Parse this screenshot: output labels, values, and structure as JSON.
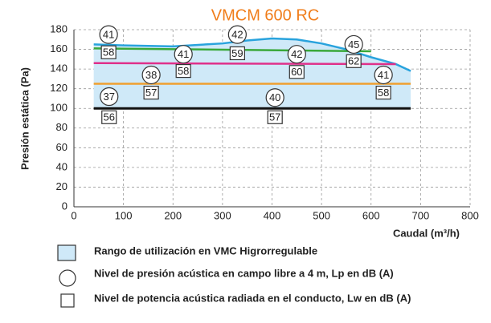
{
  "chart_data": {
    "type": "line",
    "title": "VMCM 600 RC",
    "title_color": "#f07d1a",
    "xlabel": "Caudal (m³/h)",
    "ylabel": "Presión estática (Pa)",
    "xlim": [
      0,
      800
    ],
    "xticks": [
      0,
      100,
      200,
      300,
      400,
      500,
      600,
      700,
      800
    ],
    "ylim": [
      0,
      180
    ],
    "yticks": [
      0,
      20,
      40,
      60,
      80,
      100,
      120,
      140,
      160,
      180
    ],
    "grid": true,
    "area_color": "#cfe9f8",
    "series": [
      {
        "color": "#29a3dd",
        "x": [
          40,
          100,
          200,
          300,
          350,
          400,
          450,
          500,
          550,
          600,
          650,
          680
        ],
        "values": [
          165,
          164,
          163,
          166,
          169,
          171,
          170,
          166,
          160,
          152,
          145,
          138
        ]
      },
      {
        "color": "#3aa83a",
        "x": [
          40,
          600
        ],
        "values": [
          161,
          158
        ]
      },
      {
        "color": "#e0308a",
        "x": [
          40,
          650
        ],
        "values": [
          146,
          145
        ]
      },
      {
        "color": "#f0a030",
        "x": [
          40,
          680
        ],
        "values": [
          125,
          125
        ]
      },
      {
        "color": "#111111",
        "x": [
          40,
          680
        ],
        "values": [
          100,
          100
        ]
      }
    ],
    "lp_labels": [
      {
        "x": 70,
        "y": 175,
        "value": 41
      },
      {
        "x": 330,
        "y": 175,
        "value": 42
      },
      {
        "x": 221,
        "y": 155,
        "value": 41
      },
      {
        "x": 450,
        "y": 155,
        "value": 42
      },
      {
        "x": 565,
        "y": 165,
        "value": 45
      },
      {
        "x": 156,
        "y": 134,
        "value": 38
      },
      {
        "x": 625,
        "y": 134,
        "value": 41
      },
      {
        "x": 71,
        "y": 112,
        "value": 37
      },
      {
        "x": 406,
        "y": 111,
        "value": 40
      }
    ],
    "lw_labels": [
      {
        "x": 70,
        "y": 157,
        "value": 58
      },
      {
        "x": 330,
        "y": 156,
        "value": 59
      },
      {
        "x": 221,
        "y": 138,
        "value": 58
      },
      {
        "x": 450,
        "y": 137,
        "value": 60
      },
      {
        "x": 565,
        "y": 148,
        "value": 62
      },
      {
        "x": 156,
        "y": 116,
        "value": 57
      },
      {
        "x": 625,
        "y": 116,
        "value": 58
      },
      {
        "x": 71,
        "y": 91,
        "value": 56
      },
      {
        "x": 406,
        "y": 91,
        "value": 57
      }
    ],
    "legend": [
      "Rango de utilización en VMC Higrorregulable",
      "Nivel de presión acústica en campo libre a 4 m, Lp en dB (A)",
      "Nivel de potencia acústica radiada en el conducto, Lw en dB (A)"
    ]
  }
}
